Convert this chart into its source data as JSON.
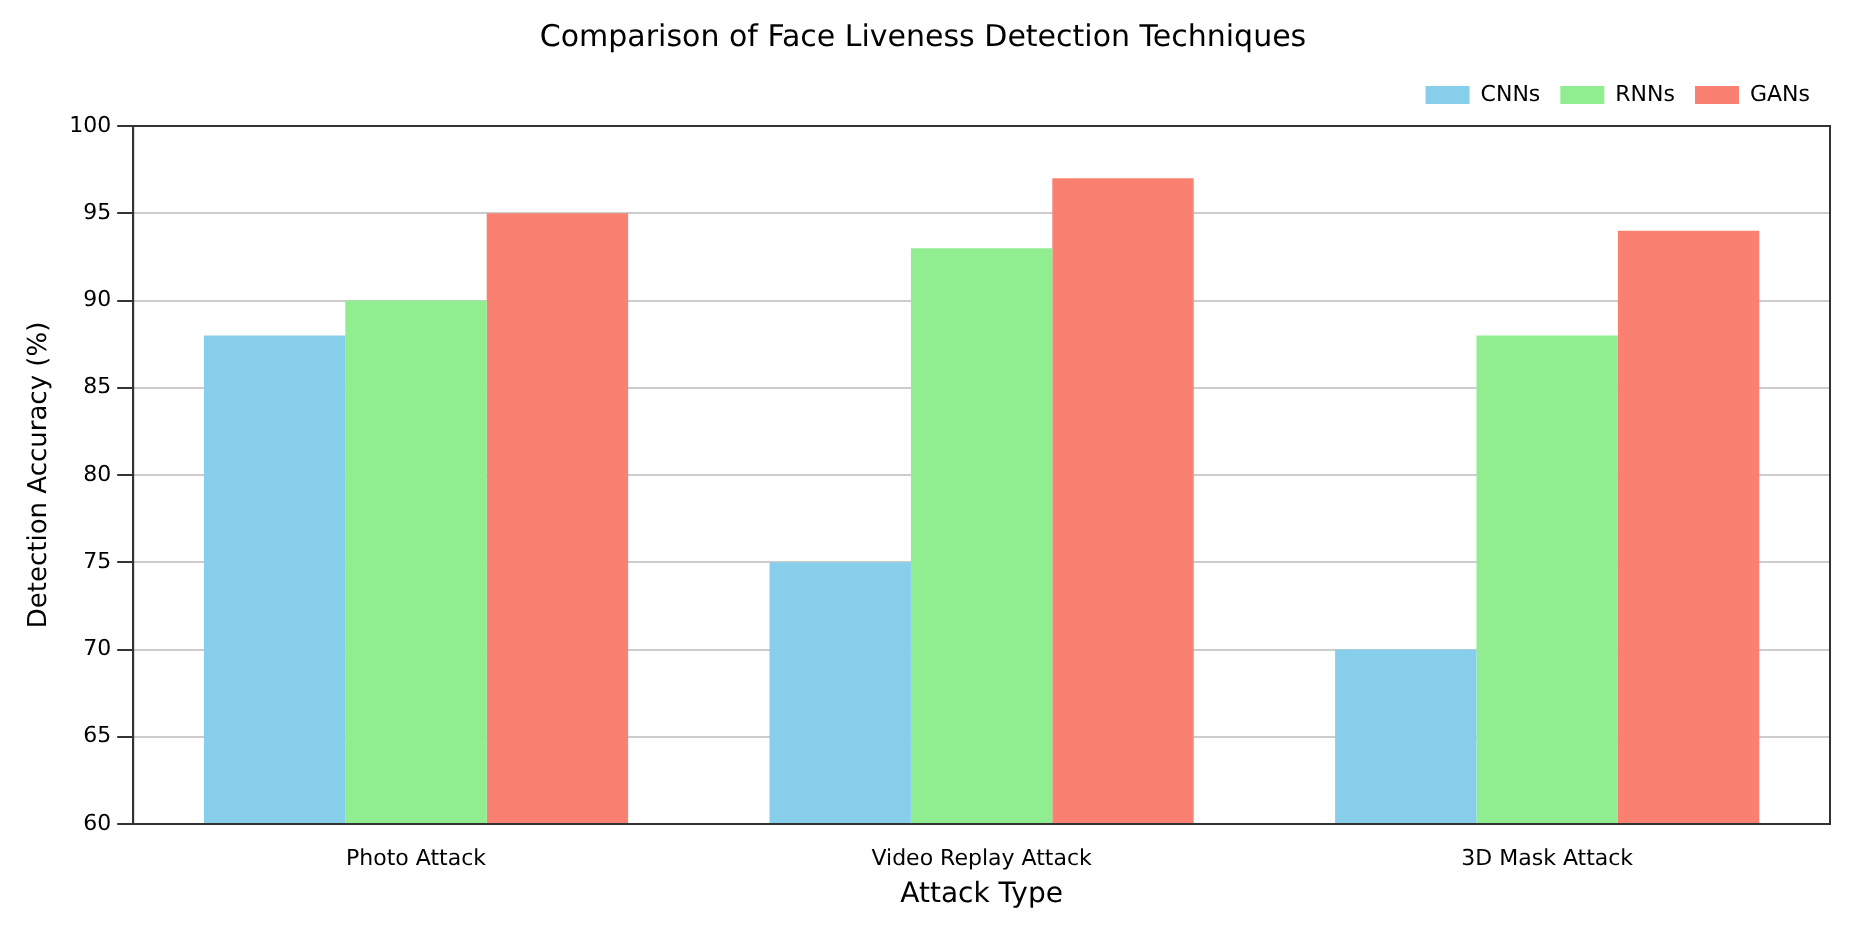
{
  "chart_data": {
    "type": "bar",
    "title": "Comparison of Face Liveness Detection Techniques",
    "xlabel": "Attack Type",
    "ylabel": "Detection Accuracy (%)",
    "categories": [
      "Photo Attack",
      "Video Replay Attack",
      "3D Mask Attack"
    ],
    "series": [
      {
        "name": "CNNs",
        "color": "#87ceeb",
        "values": [
          88,
          75,
          70
        ]
      },
      {
        "name": "RNNs",
        "color": "#90ee90",
        "values": [
          90,
          93,
          88
        ]
      },
      {
        "name": "GANs",
        "color": "#fa8072",
        "values": [
          95,
          97,
          94
        ]
      }
    ],
    "ylim": [
      60,
      100
    ],
    "yticks": [
      60,
      65,
      70,
      75,
      80,
      85,
      90,
      95,
      100
    ],
    "grid": "y",
    "legend": "top right"
  }
}
